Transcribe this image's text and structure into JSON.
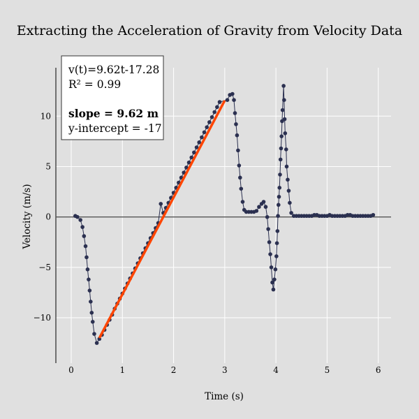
{
  "chart_data": {
    "type": "scatter",
    "title": "Extracting the Acceleration of Gravity from Velocity Data",
    "xlabel": "Time (s)",
    "ylabel": "Velocity (m/s)",
    "xlim": [
      -0.3,
      6.25
    ],
    "ylim": [
      -14.5,
      14.8
    ],
    "x_ticks": [
      0,
      1,
      2,
      3,
      4,
      5,
      6
    ],
    "y_ticks": [
      -10,
      -5,
      0,
      5,
      10
    ],
    "y_tick_labels": [
      "−10",
      "−5",
      "0",
      "5",
      "10"
    ],
    "grid": true,
    "series": [
      {
        "points": [
          [
            0.08,
            0.1
          ],
          [
            0.12,
            0.0
          ],
          [
            0.18,
            -0.3
          ],
          [
            0.22,
            -1.0
          ],
          [
            0.25,
            -1.9
          ],
          [
            0.28,
            -2.9
          ],
          [
            0.3,
            -4.0
          ],
          [
            0.32,
            -5.2
          ],
          [
            0.34,
            -6.2
          ],
          [
            0.36,
            -7.3
          ],
          [
            0.38,
            -8.4
          ],
          [
            0.4,
            -9.5
          ],
          [
            0.42,
            -10.4
          ],
          [
            0.45,
            -11.6
          ],
          [
            0.5,
            -12.5
          ],
          [
            0.55,
            -12.1
          ],
          [
            0.6,
            -11.7
          ],
          [
            0.65,
            -11.2
          ],
          [
            0.7,
            -10.7
          ],
          [
            0.75,
            -10.2
          ],
          [
            0.8,
            -9.7
          ],
          [
            0.85,
            -9.1
          ],
          [
            0.9,
            -8.6
          ],
          [
            0.95,
            -8.1
          ],
          [
            1.0,
            -7.6
          ],
          [
            1.05,
            -7.1
          ],
          [
            1.1,
            -6.6
          ],
          [
            1.15,
            -6.1
          ],
          [
            1.2,
            -5.6
          ],
          [
            1.25,
            -5.1
          ],
          [
            1.3,
            -4.6
          ],
          [
            1.35,
            -4.1
          ],
          [
            1.4,
            -3.6
          ],
          [
            1.45,
            -3.1
          ],
          [
            1.5,
            -2.6
          ],
          [
            1.55,
            -2.1
          ],
          [
            1.6,
            -1.6
          ],
          [
            1.65,
            -1.1
          ],
          [
            1.7,
            -0.6
          ],
          [
            1.75,
            1.3
          ],
          [
            1.8,
            0.4
          ],
          [
            1.85,
            0.9
          ],
          [
            1.9,
            1.4
          ],
          [
            1.95,
            1.9
          ],
          [
            2.0,
            2.4
          ],
          [
            2.05,
            2.9
          ],
          [
            2.1,
            3.4
          ],
          [
            2.15,
            3.9
          ],
          [
            2.2,
            4.4
          ],
          [
            2.25,
            4.9
          ],
          [
            2.3,
            5.4
          ],
          [
            2.35,
            5.9
          ],
          [
            2.4,
            6.4
          ],
          [
            2.45,
            6.9
          ],
          [
            2.5,
            7.4
          ],
          [
            2.55,
            7.9
          ],
          [
            2.6,
            8.4
          ],
          [
            2.65,
            8.9
          ],
          [
            2.7,
            9.4
          ],
          [
            2.75,
            9.9
          ],
          [
            2.8,
            10.4
          ],
          [
            2.85,
            10.9
          ],
          [
            2.9,
            11.4
          ],
          [
            3.05,
            11.6
          ],
          [
            3.1,
            12.1
          ],
          [
            3.15,
            12.2
          ],
          [
            3.18,
            11.6
          ],
          [
            3.2,
            10.3
          ],
          [
            3.22,
            9.2
          ],
          [
            3.24,
            8.1
          ],
          [
            3.26,
            6.6
          ],
          [
            3.28,
            5.1
          ],
          [
            3.3,
            3.9
          ],
          [
            3.32,
            2.8
          ],
          [
            3.35,
            1.5
          ],
          [
            3.38,
            0.7
          ],
          [
            3.42,
            0.5
          ],
          [
            3.47,
            0.5
          ],
          [
            3.52,
            0.5
          ],
          [
            3.57,
            0.5
          ],
          [
            3.62,
            0.6
          ],
          [
            3.67,
            1.0
          ],
          [
            3.72,
            1.3
          ],
          [
            3.76,
            1.5
          ],
          [
            3.8,
            1.0
          ],
          [
            3.83,
            -0.01
          ],
          [
            3.85,
            -1.2
          ],
          [
            3.87,
            -2.5
          ],
          [
            3.89,
            -3.7
          ],
          [
            3.91,
            -5.0
          ],
          [
            3.93,
            -6.5
          ],
          [
            3.95,
            -7.2
          ],
          [
            3.97,
            -6.2
          ],
          [
            3.99,
            -5.2
          ],
          [
            4.01,
            -3.9
          ],
          [
            4.02,
            -2.6
          ],
          [
            4.03,
            -1.4
          ],
          [
            4.04,
            0.1
          ],
          [
            4.05,
            1.2
          ],
          [
            4.06,
            2.0
          ],
          [
            4.07,
            2.9
          ],
          [
            4.08,
            4.2
          ],
          [
            4.09,
            5.7
          ],
          [
            4.1,
            6.8
          ],
          [
            4.11,
            8.0
          ],
          [
            4.12,
            9.5
          ],
          [
            4.13,
            10.6
          ],
          [
            4.15,
            13.0
          ],
          [
            4.16,
            11.6
          ],
          [
            4.17,
            9.7
          ],
          [
            4.18,
            8.3
          ],
          [
            4.2,
            6.7
          ],
          [
            4.21,
            5.0
          ],
          [
            4.23,
            3.7
          ],
          [
            4.25,
            2.6
          ],
          [
            4.27,
            1.4
          ],
          [
            4.3,
            0.4
          ],
          [
            4.35,
            0.1
          ],
          [
            4.4,
            0.1
          ],
          [
            4.45,
            0.1
          ],
          [
            4.5,
            0.1
          ],
          [
            4.55,
            0.1
          ],
          [
            4.6,
            0.1
          ],
          [
            4.65,
            0.1
          ],
          [
            4.7,
            0.1
          ],
          [
            4.75,
            0.2
          ],
          [
            4.8,
            0.2
          ],
          [
            4.85,
            0.1
          ],
          [
            4.9,
            0.1
          ],
          [
            4.95,
            0.1
          ],
          [
            5.0,
            0.1
          ],
          [
            5.05,
            0.2
          ],
          [
            5.1,
            0.1
          ],
          [
            5.15,
            0.1
          ],
          [
            5.2,
            0.1
          ],
          [
            5.25,
            0.1
          ],
          [
            5.3,
            0.1
          ],
          [
            5.35,
            0.1
          ],
          [
            5.4,
            0.2
          ],
          [
            5.45,
            0.2
          ],
          [
            5.5,
            0.1
          ],
          [
            5.55,
            0.1
          ],
          [
            5.6,
            0.1
          ],
          [
            5.65,
            0.1
          ],
          [
            5.7,
            0.1
          ],
          [
            5.75,
            0.1
          ],
          [
            5.8,
            0.1
          ],
          [
            5.85,
            0.1
          ],
          [
            5.9,
            0.2
          ]
        ]
      }
    ],
    "fit_line": {
      "x": [
        0.55,
        3.0
      ],
      "y": [
        -12.0,
        11.55
      ]
    },
    "annotation": {
      "equation": "v(t)=9.62t-17.28",
      "r2": "R² = 0.99",
      "slope": "slope = 9.62 m",
      "intercept": "y-intercept = -17",
      "placement": "top-left"
    },
    "colors": {
      "points": "#2b3050",
      "fit": "#ff4500",
      "background": "#e0e0e0",
      "grid": "#ffffff"
    }
  }
}
